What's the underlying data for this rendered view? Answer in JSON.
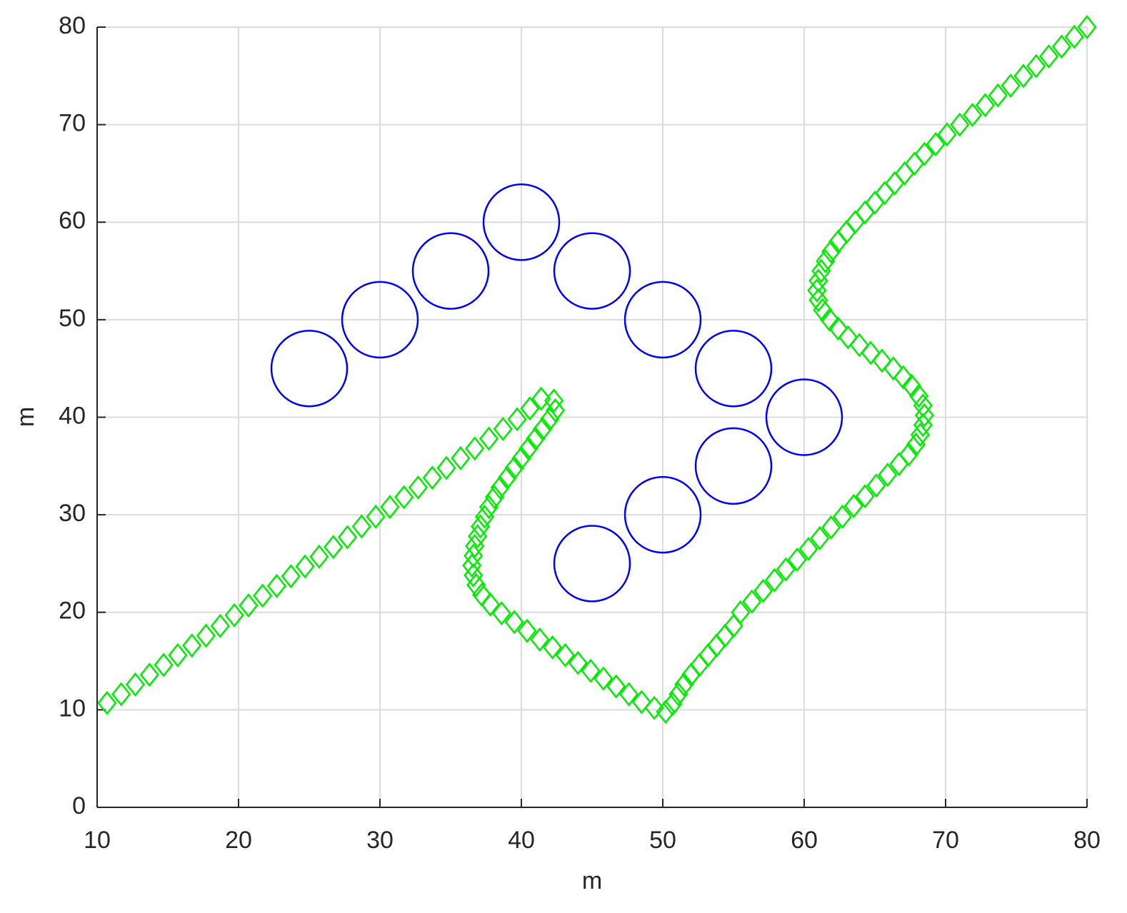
{
  "chart_data": {
    "type": "scatter",
    "xlabel": "m",
    "ylabel": "m",
    "xlim": [
      10,
      80
    ],
    "ylim": [
      0,
      80
    ],
    "xticks": [
      10,
      20,
      30,
      40,
      50,
      60,
      70,
      80
    ],
    "yticks": [
      0,
      10,
      20,
      30,
      40,
      50,
      60,
      70,
      80
    ],
    "grid": true,
    "series": [
      {
        "color": "#0000ff",
        "marker": "circle",
        "x": [
          25,
          30,
          35,
          40,
          45,
          50,
          55,
          60,
          55,
          50,
          45
        ],
        "values": [
          45,
          50,
          55,
          60,
          55,
          50,
          45,
          40,
          35,
          30,
          25
        ]
      },
      {
        "color": "#00ee00",
        "marker": "diamond",
        "x": [
          10.7,
          11.7,
          12.7,
          13.7,
          14.7,
          15.7,
          16.7,
          17.7,
          18.7,
          19.7,
          20.7,
          21.7,
          22.7,
          23.7,
          24.7,
          25.7,
          26.7,
          27.7,
          28.7,
          29.7,
          30.7,
          31.7,
          32.7,
          33.7,
          34.7,
          35.7,
          36.7,
          37.7,
          38.7,
          39.7,
          40.6,
          41.4,
          42.3,
          42.4,
          42.0,
          41.5,
          41.0,
          40.5,
          40.0,
          39.5,
          39.0,
          38.5,
          38.1,
          37.7,
          37.4,
          37.1,
          36.9,
          36.7,
          36.6,
          36.5,
          36.6,
          36.8,
          37.2,
          37.8,
          38.6,
          39.5,
          40.4,
          41.3,
          42.2,
          43.1,
          44.0,
          44.9,
          45.8,
          46.7,
          47.6,
          48.5,
          49.4,
          50.2,
          50.7,
          51.1,
          51.5,
          52.0,
          52.6,
          53.2,
          53.8,
          54.4,
          55.0,
          55.5,
          56.3,
          57.1,
          57.9,
          58.7,
          59.5,
          60.3,
          61.1,
          61.9,
          62.7,
          63.5,
          64.3,
          65.1,
          65.9,
          66.7,
          67.4,
          67.9,
          68.2,
          68.4,
          68.5,
          68.4,
          68.1,
          67.6,
          67.0,
          66.3,
          65.5,
          64.7,
          63.9,
          63.1,
          62.4,
          61.8,
          61.3,
          61.0,
          60.9,
          61.0,
          61.2,
          61.5,
          61.9,
          62.4,
          63.0,
          63.6,
          64.3,
          65.0,
          65.7,
          66.4,
          67.1,
          67.8,
          68.5,
          69.3,
          70.1,
          71.0,
          71.9,
          72.8,
          73.7,
          74.6,
          75.5,
          76.4,
          77.3,
          78.2,
          79.1,
          80.0
        ],
        "values": [
          10.7,
          11.6,
          12.6,
          13.6,
          14.6,
          15.6,
          16.6,
          17.6,
          18.6,
          19.7,
          20.7,
          21.7,
          22.7,
          23.7,
          24.7,
          25.7,
          26.7,
          27.7,
          28.8,
          29.8,
          30.8,
          31.8,
          32.8,
          33.8,
          34.8,
          35.8,
          36.8,
          37.8,
          38.8,
          39.8,
          40.9,
          41.9,
          41.7,
          40.7,
          39.8,
          38.8,
          37.8,
          36.8,
          35.8,
          34.8,
          33.8,
          32.8,
          31.8,
          30.8,
          29.8,
          28.8,
          27.8,
          26.8,
          25.8,
          24.8,
          23.8,
          22.8,
          21.8,
          20.8,
          19.9,
          19.0,
          18.1,
          17.2,
          16.4,
          15.6,
          14.8,
          14.0,
          13.2,
          12.4,
          11.6,
          10.8,
          10.2,
          9.8,
          10.6,
          11.6,
          12.6,
          13.6,
          14.6,
          15.6,
          16.6,
          17.6,
          18.6,
          20.0,
          21.1,
          22.2,
          23.3,
          24.4,
          25.4,
          26.5,
          27.6,
          28.7,
          29.8,
          30.9,
          31.9,
          33.0,
          34.1,
          35.2,
          36.2,
          37.2,
          38.2,
          39.2,
          40.2,
          41.2,
          42.2,
          43.2,
          44.1,
          45.0,
          45.8,
          46.6,
          47.4,
          48.2,
          49.1,
          50.0,
          51.0,
          52.0,
          53.0,
          54.0,
          55.0,
          56.0,
          57.0,
          58.0,
          59.0,
          60.0,
          61.0,
          62.0,
          63.0,
          64.0,
          65.0,
          66.0,
          67.0,
          68.0,
          69.0,
          70.0,
          71.0,
          72.0,
          73.0,
          74.0,
          75.0,
          76.0,
          77.0,
          78.0,
          79.0,
          80.0
        ]
      }
    ]
  }
}
